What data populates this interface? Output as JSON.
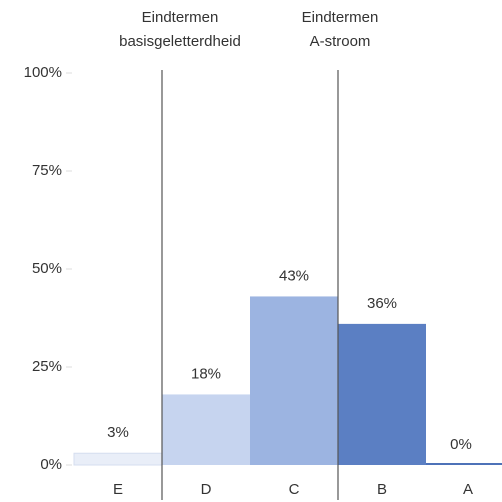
{
  "chart_data": {
    "type": "bar",
    "categories": [
      "E",
      "D",
      "C",
      "B",
      "A"
    ],
    "values": [
      3,
      18,
      43,
      36,
      0
    ],
    "value_labels": [
      "3%",
      "18%",
      "43%",
      "36%",
      "0%"
    ],
    "colors": [
      "#e9eef8",
      "#c6d4ef",
      "#9cb4e1",
      "#5b7fc3",
      "#4d72b8"
    ],
    "ylim": [
      0,
      100
    ],
    "yticks": [
      {
        "value": 0,
        "label": "0%"
      },
      {
        "value": 25,
        "label": "25%"
      },
      {
        "value": 50,
        "label": "50%"
      },
      {
        "value": 75,
        "label": "75%"
      },
      {
        "value": 100,
        "label": "100%"
      }
    ],
    "annotations": [
      {
        "lines": [
          "Eindtermen",
          "basisgeletterdheid"
        ]
      },
      {
        "lines": [
          "Eindtermen",
          "A-stroom"
        ]
      }
    ]
  }
}
